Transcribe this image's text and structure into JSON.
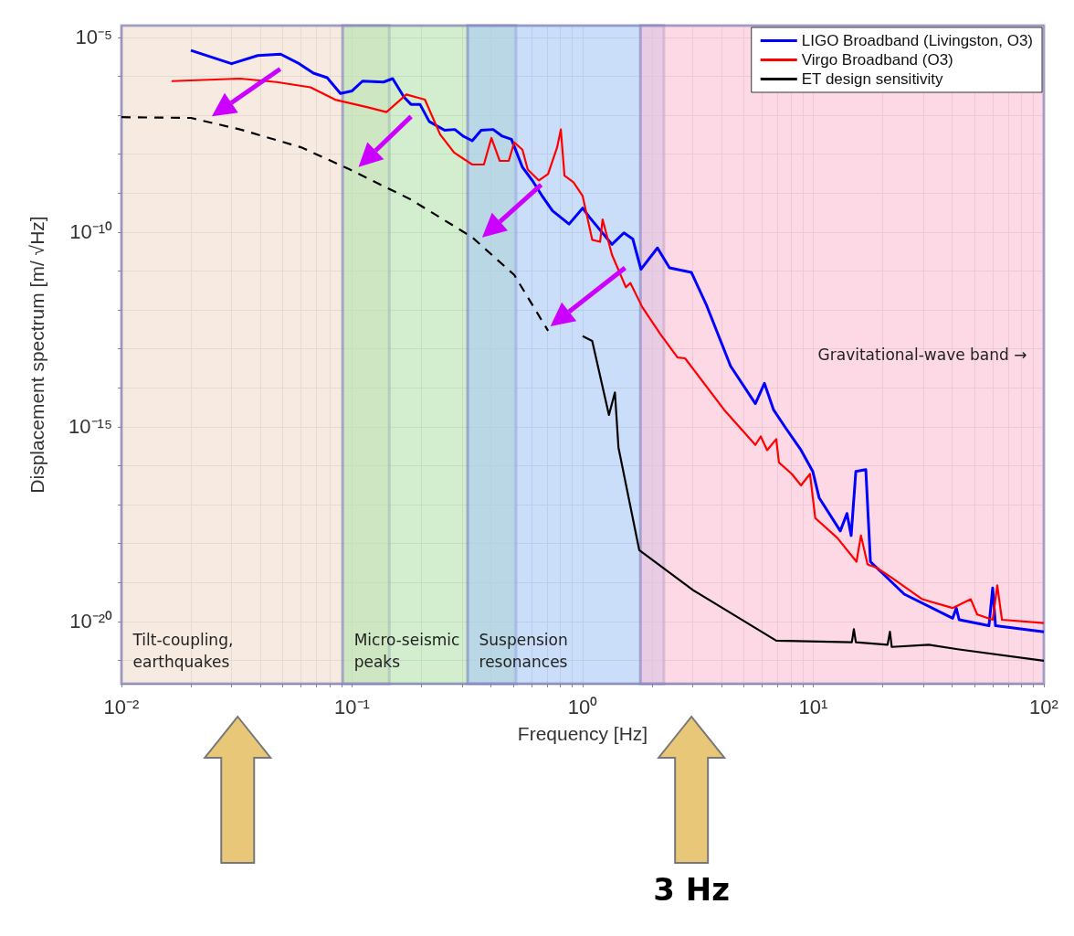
{
  "chart_data": {
    "type": "line",
    "xlabel": "Frequency [Hz]",
    "ylabel": "Displacement spectrum [m/ √Hz]",
    "log": "xy",
    "grid": true,
    "legend": "top right",
    "marker": "none",
    "line_style": "solid",
    "xlim": [
      0.01,
      100
    ],
    "ylim": [
      2.5e-22,
      2e-05
    ],
    "xticks": [
      {
        "value": 0.01,
        "label": "10⁻²"
      },
      {
        "value": 0.02,
        "label": null
      },
      {
        "value": 0.03,
        "label": null
      },
      {
        "value": 0.04,
        "label": null
      },
      {
        "value": 0.05,
        "label": null
      },
      {
        "value": 0.06,
        "label": null
      },
      {
        "value": 0.07,
        "label": null
      },
      {
        "value": 0.08,
        "label": null
      },
      {
        "value": 0.09,
        "label": null
      },
      {
        "value": 0.1,
        "label": "10⁻¹"
      },
      {
        "value": 0.2,
        "label": null
      },
      {
        "value": 0.3,
        "label": null
      },
      {
        "value": 0.4,
        "label": null
      },
      {
        "value": 0.5,
        "label": null
      },
      {
        "value": 0.6,
        "label": null
      },
      {
        "value": 0.7,
        "label": null
      },
      {
        "value": 0.8,
        "label": null
      },
      {
        "value": 0.9,
        "label": null
      },
      {
        "value": 1,
        "label": "10⁰"
      },
      {
        "value": 2,
        "label": null
      },
      {
        "value": 3,
        "label": null
      },
      {
        "value": 4,
        "label": null
      },
      {
        "value": 5,
        "label": null
      },
      {
        "value": 6,
        "label": null
      },
      {
        "value": 7,
        "label": null
      },
      {
        "value": 8,
        "label": null
      },
      {
        "value": 9,
        "label": null
      },
      {
        "value": 10,
        "label": "10¹"
      },
      {
        "value": 20,
        "label": null
      },
      {
        "value": 30,
        "label": null
      },
      {
        "value": 40,
        "label": null
      },
      {
        "value": 50,
        "label": null
      },
      {
        "value": 60,
        "label": null
      },
      {
        "value": 70,
        "label": null
      },
      {
        "value": 80,
        "label": null
      },
      {
        "value": 90,
        "label": null
      },
      {
        "value": 100,
        "label": "10²"
      }
    ],
    "yticks": [
      {
        "value": 1e-21,
        "label": null
      },
      {
        "value": 1e-20,
        "label": "10⁻²⁰"
      },
      {
        "value": 1e-19,
        "label": null
      },
      {
        "value": 1e-18,
        "label": null
      },
      {
        "value": 1e-17,
        "label": null
      },
      {
        "value": 1e-16,
        "label": null
      },
      {
        "value": 1e-15,
        "label": "10⁻¹⁵"
      },
      {
        "value": 1e-14,
        "label": null
      },
      {
        "value": 1e-13,
        "label": null
      },
      {
        "value": 1e-12,
        "label": null
      },
      {
        "value": 1e-11,
        "label": null
      },
      {
        "value": 1e-10,
        "label": "10⁻¹⁰"
      },
      {
        "value": 1e-09,
        "label": null
      },
      {
        "value": 1e-08,
        "label": null
      },
      {
        "value": 1e-07,
        "label": null
      },
      {
        "value": 1e-06,
        "label": null
      },
      {
        "value": 1e-05,
        "label": "10⁻⁵"
      }
    ],
    "bands": [
      {
        "axis": "x",
        "from": 0.01,
        "to": 0.145,
        "label": "Tilt-coupling, earthquakes",
        "color": "#f2dccd"
      },
      {
        "axis": "x",
        "from": 0.091,
        "to": 0.514,
        "label": "Micro-seismic peaks",
        "color": "#b4e2ae"
      },
      {
        "axis": "x",
        "from": 0.317,
        "to": 2.25,
        "label": "Suspension resonances",
        "color": "#a9c8f5"
      },
      {
        "axis": "x",
        "from": 1.78,
        "to": 100,
        "label": "Gravitational-wave band →",
        "color": "#fbbfd3"
      }
    ],
    "series": [
      {
        "name": "LIGO Broadband (Livingston, O3)",
        "color": "#0000ff",
        "x": [
          0.02,
          0.03,
          0.039,
          0.049,
          0.059,
          0.068,
          0.078,
          0.089,
          0.1,
          0.111,
          0.137,
          0.15,
          0.168,
          0.18,
          0.197,
          0.216,
          0.252,
          0.279,
          0.303,
          0.332,
          0.363,
          0.409,
          0.448,
          0.491,
          0.548,
          0.605,
          0.664,
          0.74,
          0.873,
          1.0,
          1.07,
          1.34,
          1.51,
          1.65,
          1.79,
          2.11,
          2.38,
          2.96,
          3.43,
          4.38,
          5.61,
          6.14,
          6.73,
          7.57,
          8.85,
          9.95,
          10.6,
          13.1,
          14.0,
          14.6,
          15.3,
          16.9,
          17.7,
          24.8,
          40.2,
          41.7,
          42.9,
          57.8,
          60.0,
          61.7,
          100
        ],
        "values": [
          4.6e-06,
          2.1e-06,
          3.4e-06,
          3.7e-06,
          2.1e-06,
          1.2e-06,
          9.2e-07,
          3.6e-07,
          4.2e-07,
          7.5e-07,
          7.1e-07,
          8.7e-07,
          2.9e-07,
          1.9e-07,
          1.9e-07,
          6.9e-08,
          4.1e-08,
          4.3e-08,
          2.9e-08,
          2.2e-08,
          4.1e-08,
          4.3e-08,
          2.9e-08,
          2.4e-08,
          4.6e-09,
          2.1e-09,
          8.8e-10,
          3.5e-10,
          1.6e-10,
          4.1e-10,
          2.4e-10,
          4.8e-11,
          9.5e-11,
          6.6e-11,
          1.1e-11,
          3.9e-11,
          1.2e-11,
          9.2e-12,
          1.4e-12,
          3.6e-14,
          3.9e-15,
          1.3e-14,
          2.7e-15,
          9.5e-16,
          2.5e-16,
          7.1e-17,
          1.5e-17,
          2.1e-18,
          5.9e-18,
          1.6e-18,
          7.1e-17,
          7.9e-17,
          3.4e-19,
          5e-20,
          1.2e-20,
          2.2e-20,
          1.1e-20,
          7.7e-21,
          7.2e-20,
          7.7e-21,
          5.4e-21
        ]
      },
      {
        "name": "Virgo Broadband (O3)",
        "color": "#ff0000",
        "x": [
          0.0165,
          0.0327,
          0.047,
          0.066,
          0.0845,
          0.117,
          0.141,
          0.172,
          0.207,
          0.241,
          0.277,
          0.332,
          0.373,
          0.402,
          0.437,
          0.478,
          0.505,
          0.548,
          0.578,
          0.646,
          0.708,
          0.775,
          0.804,
          0.834,
          0.912,
          1.0,
          1.1,
          1.19,
          1.22,
          1.34,
          1.54,
          1.61,
          1.81,
          2.17,
          2.58,
          2.78,
          4.11,
          5.61,
          5.92,
          6.31,
          6.91,
          7.1,
          8.07,
          8.85,
          9.68,
          10.2,
          12.7,
          15.4,
          16.1,
          17.2,
          18.8,
          22.0,
          29.7,
          40.2,
          48.2,
          51.4,
          60.0,
          62.8,
          65.8,
          100
        ],
        "values": [
          7.5e-07,
          8.7e-07,
          7.1e-07,
          5.2e-07,
          2.5e-07,
          1.6e-07,
          1.2e-07,
          3.4e-07,
          2.5e-07,
          3.2e-08,
          1.1e-08,
          5.4e-09,
          5.4e-09,
          2.6e-08,
          6.7e-09,
          6.7e-09,
          2e-08,
          1.3e-08,
          4e-09,
          2.1e-09,
          3.1e-09,
          1.5e-08,
          4.3e-08,
          2.8e-09,
          1.9e-09,
          8.4e-10,
          6.3e-11,
          5.6e-11,
          2.1e-10,
          2.6e-11,
          3.8e-12,
          4.9e-12,
          1.2e-12,
          2.4e-13,
          6e-14,
          5.7e-14,
          2.7e-15,
          3.4e-16,
          5.6e-16,
          2.5e-16,
          4.8e-16,
          1.2e-16,
          6.1e-17,
          3.1e-17,
          6.1e-17,
          4.5e-18,
          1.4e-18,
          3.4e-19,
          1.6e-18,
          2.9e-19,
          2.4e-19,
          1.3e-19,
          3.7e-20,
          2.2e-20,
          3.7e-20,
          1.5e-20,
          1.1e-20,
          8.4e-20,
          1.1e-20,
          9e-21
        ]
      },
      {
        "name": "ET design sensitivity",
        "color": "#000000",
        "x": [
          1.0,
          1.1,
          1.3,
          1.38,
          1.43,
          1.76,
          3.04,
          6.91,
          14.7,
          15.0,
          15.3,
          21.0,
          21.5,
          21.9,
          31.7,
          42.9,
          100
        ],
        "values": [
          2.1e-13,
          1.6e-13,
          2e-15,
          7.6e-15,
          2.9e-16,
          6.7e-19,
          6.1e-20,
          3.2e-21,
          2.9e-21,
          6.3e-21,
          2.9e-21,
          2.5e-21,
          5.4e-21,
          2.2e-21,
          2.5e-21,
          1.9e-21,
          9.7e-22
        ]
      },
      {
        "color": "#000000",
        "line_style": "dashed",
        "x": [
          0.01,
          0.02,
          0.0327,
          0.06,
          0.098,
          0.18,
          0.332,
          0.505,
          0.708
        ],
        "values": [
          8.9e-08,
          8.5e-08,
          4.3e-08,
          1.5e-08,
          4e-09,
          6.8e-10,
          7.3e-11,
          7.9e-12,
          2.9e-13
        ]
      }
    ],
    "annotations": [
      "3 Hz"
    ]
  }
}
